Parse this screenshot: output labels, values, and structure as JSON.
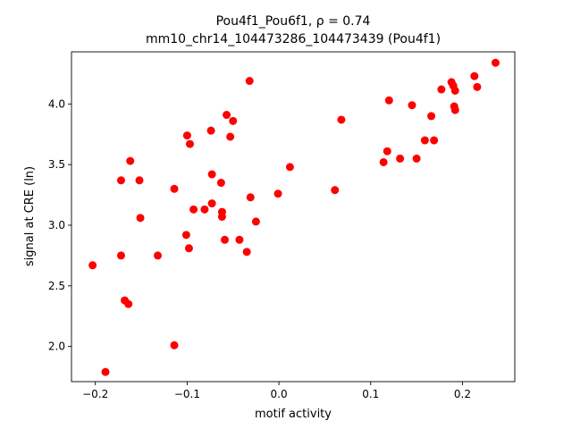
{
  "chart_data": {
    "type": "scatter",
    "title_line1": "Pou4f1_Pou6f1, ρ = 0.74",
    "title_line2": "mm10_chr14_104473286_104473439 (Pou4f1)",
    "xlabel": "motif activity",
    "ylabel": "signal at CRE (ln)",
    "xlim": [
      -0.226,
      0.257
    ],
    "ylim": [
      1.71,
      4.43
    ],
    "xticks": [
      -0.2,
      -0.1,
      0.0,
      0.1,
      0.2
    ],
    "xtick_labels": [
      "−0.2",
      "−0.1",
      "0.0",
      "0.1",
      "0.2"
    ],
    "yticks": [
      2.0,
      2.5,
      3.0,
      3.5,
      4.0
    ],
    "ytick_labels": [
      "2.0",
      "2.5",
      "3.0",
      "3.5",
      "4.0"
    ],
    "grid": false,
    "marker_color": "#ff0000",
    "points": [
      {
        "x": -0.203,
        "y": 2.67
      },
      {
        "x": -0.189,
        "y": 1.79
      },
      {
        "x": -0.172,
        "y": 3.37
      },
      {
        "x": -0.172,
        "y": 2.75
      },
      {
        "x": -0.168,
        "y": 2.38
      },
      {
        "x": -0.164,
        "y": 2.35
      },
      {
        "x": -0.162,
        "y": 3.53
      },
      {
        "x": -0.152,
        "y": 3.37
      },
      {
        "x": -0.151,
        "y": 3.06
      },
      {
        "x": -0.132,
        "y": 2.75
      },
      {
        "x": -0.114,
        "y": 3.3
      },
      {
        "x": -0.114,
        "y": 2.01
      },
      {
        "x": -0.101,
        "y": 2.92
      },
      {
        "x": -0.1,
        "y": 3.74
      },
      {
        "x": -0.098,
        "y": 2.81
      },
      {
        "x": -0.097,
        "y": 3.67
      },
      {
        "x": -0.093,
        "y": 3.13
      },
      {
        "x": -0.081,
        "y": 3.13
      },
      {
        "x": -0.074,
        "y": 3.78
      },
      {
        "x": -0.073,
        "y": 3.42
      },
      {
        "x": -0.073,
        "y": 3.18
      },
      {
        "x": -0.063,
        "y": 3.35
      },
      {
        "x": -0.062,
        "y": 3.11
      },
      {
        "x": -0.062,
        "y": 3.07
      },
      {
        "x": -0.059,
        "y": 2.88
      },
      {
        "x": -0.057,
        "y": 3.91
      },
      {
        "x": -0.053,
        "y": 3.73
      },
      {
        "x": -0.05,
        "y": 3.86
      },
      {
        "x": -0.043,
        "y": 2.88
      },
      {
        "x": -0.035,
        "y": 2.78
      },
      {
        "x": -0.032,
        "y": 4.19
      },
      {
        "x": -0.031,
        "y": 3.23
      },
      {
        "x": -0.025,
        "y": 3.03
      },
      {
        "x": -0.001,
        "y": 3.26
      },
      {
        "x": 0.012,
        "y": 3.48
      },
      {
        "x": 0.061,
        "y": 3.29
      },
      {
        "x": 0.068,
        "y": 3.87
      },
      {
        "x": 0.114,
        "y": 3.52
      },
      {
        "x": 0.118,
        "y": 3.61
      },
      {
        "x": 0.12,
        "y": 4.03
      },
      {
        "x": 0.132,
        "y": 3.55
      },
      {
        "x": 0.145,
        "y": 3.99
      },
      {
        "x": 0.15,
        "y": 3.55
      },
      {
        "x": 0.159,
        "y": 3.7
      },
      {
        "x": 0.166,
        "y": 3.9
      },
      {
        "x": 0.169,
        "y": 3.7
      },
      {
        "x": 0.177,
        "y": 4.12
      },
      {
        "x": 0.188,
        "y": 4.18
      },
      {
        "x": 0.19,
        "y": 4.15
      },
      {
        "x": 0.191,
        "y": 3.98
      },
      {
        "x": 0.192,
        "y": 3.95
      },
      {
        "x": 0.192,
        "y": 4.11
      },
      {
        "x": 0.213,
        "y": 4.23
      },
      {
        "x": 0.216,
        "y": 4.14
      },
      {
        "x": 0.236,
        "y": 4.34
      }
    ]
  }
}
